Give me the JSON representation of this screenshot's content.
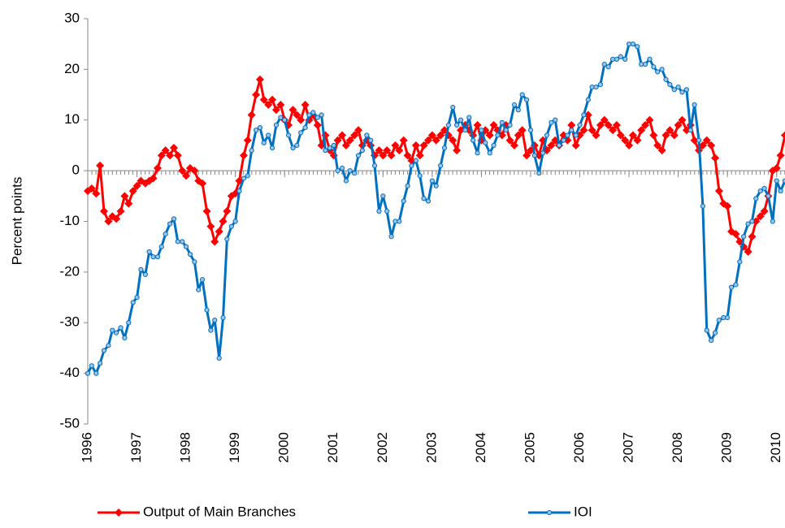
{
  "chart_data": {
    "type": "line",
    "y_label": "Percent points",
    "xlim": [
      1996,
      2010.17
    ],
    "xticks": [
      1996,
      1997,
      1998,
      1999,
      2000,
      2001,
      2002,
      2003,
      2004,
      2005,
      2006,
      2007,
      2008,
      2009,
      2010
    ],
    "ylim": [
      -50,
      30
    ],
    "yticks": [
      -50,
      -40,
      -30,
      -20,
      -10,
      0,
      10,
      20,
      30
    ],
    "legend": "bottom",
    "x": [
      1996,
      1996.08,
      1996.17,
      1996.25,
      1996.33,
      1996.42,
      1996.5,
      1996.58,
      1996.67,
      1996.75,
      1996.83,
      1996.92,
      1997,
      1997.08,
      1997.17,
      1997.25,
      1997.33,
      1997.42,
      1997.5,
      1997.58,
      1997.67,
      1997.75,
      1997.83,
      1997.92,
      1998,
      1998.08,
      1998.17,
      1998.25,
      1998.33,
      1998.42,
      1998.5,
      1998.58,
      1998.67,
      1998.75,
      1998.83,
      1998.92,
      1999,
      1999.08,
      1999.17,
      1999.25,
      1999.33,
      1999.42,
      1999.5,
      1999.58,
      1999.67,
      1999.75,
      1999.83,
      1999.92,
      2000,
      2000.08,
      2000.17,
      2000.25,
      2000.33,
      2000.42,
      2000.5,
      2000.58,
      2000.67,
      2000.75,
      2000.83,
      2000.92,
      2001,
      2001.08,
      2001.17,
      2001.25,
      2001.33,
      2001.42,
      2001.5,
      2001.58,
      2001.67,
      2001.75,
      2001.83,
      2001.92,
      2002,
      2002.08,
      2002.17,
      2002.25,
      2002.33,
      2002.42,
      2002.5,
      2002.58,
      2002.67,
      2002.75,
      2002.83,
      2002.92,
      2003,
      2003.08,
      2003.17,
      2003.25,
      2003.33,
      2003.42,
      2003.5,
      2003.58,
      2003.67,
      2003.75,
      2003.83,
      2003.92,
      2004,
      2004.08,
      2004.17,
      2004.25,
      2004.33,
      2004.42,
      2004.5,
      2004.58,
      2004.67,
      2004.75,
      2004.83,
      2004.92,
      2005,
      2005.08,
      2005.17,
      2005.25,
      2005.33,
      2005.42,
      2005.5,
      2005.58,
      2005.67,
      2005.75,
      2005.83,
      2005.92,
      2006,
      2006.08,
      2006.17,
      2006.25,
      2006.33,
      2006.42,
      2006.5,
      2006.58,
      2006.67,
      2006.75,
      2006.83,
      2006.92,
      2007,
      2007.08,
      2007.17,
      2007.25,
      2007.33,
      2007.42,
      2007.5,
      2007.58,
      2007.67,
      2007.75,
      2007.83,
      2007.92,
      2008,
      2008.08,
      2008.17,
      2008.25,
      2008.33,
      2008.42,
      2008.5,
      2008.58,
      2008.67,
      2008.75,
      2008.83,
      2008.92,
      2009,
      2009.08,
      2009.17,
      2009.25,
      2009.33,
      2009.42,
      2009.5,
      2009.58,
      2009.67,
      2009.75,
      2009.83,
      2009.92,
      2010,
      2010.08,
      2010.17
    ],
    "series": [
      {
        "name": "Output of Main Branches",
        "color": "#ff0000",
        "marker": "diamond",
        "values": [
          -4,
          -3.5,
          -4.5,
          1,
          -8,
          -10,
          -9,
          -9.5,
          -8,
          -5,
          -6.5,
          -4,
          -3,
          -2,
          -2.5,
          -2,
          -1.5,
          0.5,
          3,
          4,
          3,
          4.5,
          3,
          0,
          -1,
          0.5,
          0,
          -2,
          -2.5,
          -8,
          -11,
          -14,
          -12,
          -10,
          -8,
          -5,
          -4.5,
          -2,
          3,
          6,
          11,
          15,
          18,
          14,
          13,
          14,
          12,
          13,
          10,
          9,
          12,
          11,
          10,
          13,
          10,
          11,
          9,
          5,
          7,
          4,
          3,
          6,
          7,
          5,
          6,
          7,
          8,
          5,
          6,
          5,
          3,
          4,
          3,
          4,
          3,
          5,
          4,
          6,
          3,
          2,
          5,
          3,
          5,
          6,
          7,
          6,
          7,
          8,
          7,
          6,
          4,
          8,
          9,
          8,
          7,
          9,
          6,
          8,
          7,
          9,
          8,
          7,
          9,
          6,
          5,
          7,
          8,
          3,
          4,
          5,
          3,
          6,
          4,
          5,
          6,
          5,
          7,
          6,
          9,
          5,
          7,
          8,
          11,
          8,
          7,
          9,
          10,
          9,
          8,
          9,
          7,
          6,
          5,
          7,
          6,
          8,
          9,
          10,
          7,
          5,
          4,
          7,
          8,
          7,
          9,
          10,
          8,
          9,
          6,
          4,
          5,
          6,
          5,
          2.5,
          -4,
          -6.5,
          -7,
          -12,
          -12.5,
          -14,
          -15,
          -16,
          -13,
          -10,
          -9,
          -8,
          -5,
          0,
          0.5,
          3,
          7
        ]
      },
      {
        "name": "IOI",
        "color": "#0070c0",
        "marker": "circle",
        "values": [
          -40,
          -38.5,
          -40,
          -38,
          -35.5,
          -34.5,
          -31.5,
          -32,
          -31,
          -33,
          -30,
          -26,
          -25,
          -19.5,
          -20.5,
          -16,
          -17,
          -17,
          -15,
          -12.5,
          -10.5,
          -9.5,
          -14,
          -14,
          -15,
          -16.5,
          -18,
          -23.5,
          -21.5,
          -27.5,
          -31.5,
          -29.5,
          -37,
          -29,
          -13.5,
          -11,
          -10,
          -4,
          -1.5,
          -1,
          4,
          8,
          8.5,
          5.5,
          7,
          4.5,
          9,
          10.5,
          10,
          7,
          4.5,
          5,
          7.5,
          8.5,
          11,
          11.5,
          10.5,
          11,
          4,
          4.5,
          5,
          0,
          0.5,
          -2,
          0,
          -0.5,
          3,
          4,
          7,
          6,
          1,
          -8,
          -5,
          -8,
          -13,
          -10,
          -10,
          -6,
          -3,
          1,
          2,
          -1,
          -5.5,
          -6,
          -2,
          -3,
          1,
          4.5,
          9,
          12.5,
          9,
          10,
          8,
          10.5,
          6,
          3.5,
          8,
          5.5,
          3.5,
          5,
          7,
          9.5,
          8,
          9,
          13,
          12,
          15,
          14,
          8,
          3,
          -0.5,
          3.5,
          7,
          9.5,
          10,
          5,
          6,
          7,
          8,
          7,
          9,
          11,
          14,
          16.5,
          16.5,
          17,
          21,
          20.5,
          22,
          22,
          22.5,
          22,
          25,
          25,
          24.5,
          21,
          21,
          22,
          20.5,
          19.5,
          20,
          18,
          17,
          16,
          16.5,
          15.5,
          16,
          8,
          13,
          6,
          -7,
          -31.5,
          -33.5,
          -32,
          -29.5,
          -29,
          -29,
          -23,
          -22.5,
          -18,
          -13,
          -10.5,
          -10,
          -5.5,
          -4,
          -3.5,
          -5,
          -10,
          -2,
          -4,
          -2
        ]
      }
    ]
  }
}
